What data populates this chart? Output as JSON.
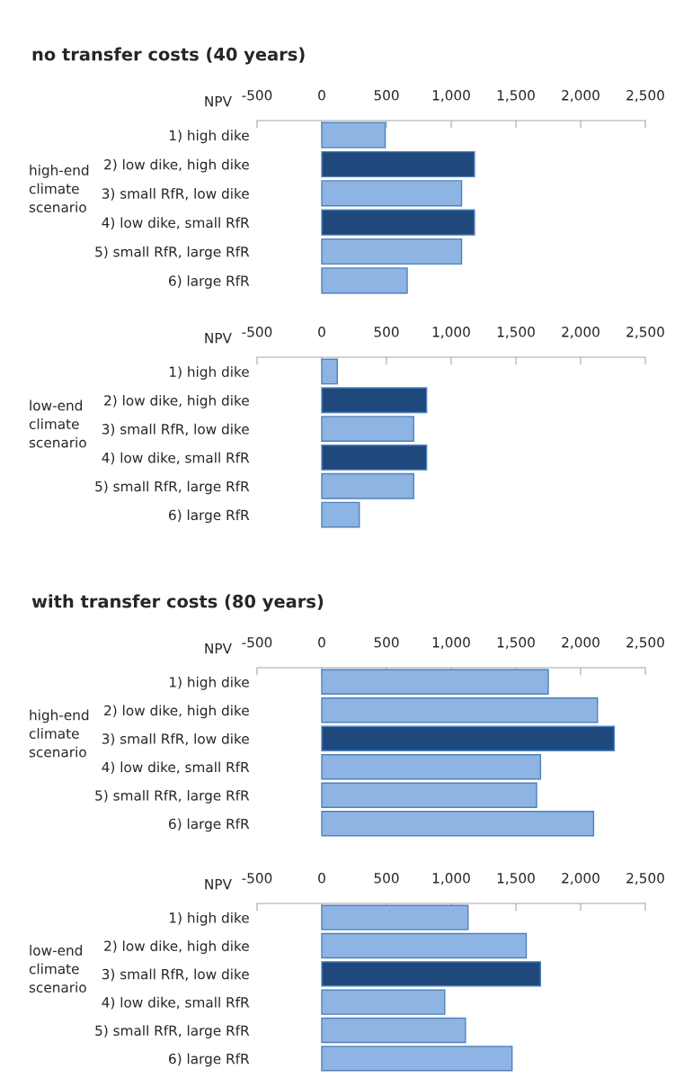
{
  "chart_data": [
    {
      "type": "bar",
      "orientation": "horizontal",
      "title": "no transfer costs (40 years)",
      "xlabel": "NPV",
      "ylabel": "high-end climate scenario",
      "categories": [
        "1) high dike",
        "2) low dike, high dike",
        "3) small RfR, low dike",
        "4) low dike, small RfR",
        "5) small RfR, large RfR",
        "6) large RfR"
      ],
      "values": [
        490,
        1180,
        1080,
        1180,
        1080,
        660
      ],
      "colors": [
        "#8eb4e3",
        "#1f497d",
        "#8eb4e3",
        "#1f497d",
        "#8eb4e3",
        "#8eb4e3"
      ],
      "xlim": [
        -500,
        2500
      ],
      "xticks": [
        {
          "value": -500,
          "label": "-500"
        },
        0,
        500,
        {
          "value": 1000,
          "label": "1,000"
        },
        {
          "value": 1500,
          "label": "1,500"
        },
        {
          "value": 2000,
          "label": "2,000"
        },
        {
          "value": 2500,
          "label": "2,500"
        }
      ],
      "grid": false,
      "legend": false
    },
    {
      "type": "bar",
      "orientation": "horizontal",
      "xlabel": "NPV",
      "ylabel": "low-end climate scenario",
      "categories": [
        "1) high dike",
        "2) low dike, high dike",
        "3) small RfR, low dike",
        "4) low dike, small RfR",
        "5) small RfR, large RfR",
        "6) large RfR"
      ],
      "values": [
        120,
        810,
        710,
        810,
        710,
        290
      ],
      "colors": [
        "#8eb4e3",
        "#1f497d",
        "#8eb4e3",
        "#1f497d",
        "#8eb4e3",
        "#8eb4e3"
      ],
      "xlim": [
        -500,
        2500
      ],
      "xticks": [
        {
          "value": -500,
          "label": "-500"
        },
        0,
        500,
        {
          "value": 1000,
          "label": "1,000"
        },
        {
          "value": 1500,
          "label": "1,500"
        },
        {
          "value": 2000,
          "label": "2,000"
        },
        {
          "value": 2500,
          "label": "2,500"
        }
      ],
      "grid": false,
      "legend": false
    },
    {
      "type": "bar",
      "orientation": "horizontal",
      "title": "with transfer costs (80 years)",
      "xlabel": "NPV",
      "ylabel": "high-end climate scenario",
      "categories": [
        "1) high dike",
        "2) low dike, high dike",
        "3) small RfR, low dike",
        "4) low dike, small RfR",
        "5) small RfR, large RfR",
        "6) large RfR"
      ],
      "values": [
        1750,
        2130,
        2260,
        1690,
        1660,
        2100
      ],
      "colors": [
        "#8eb4e3",
        "#8eb4e3",
        "#1f497d",
        "#8eb4e3",
        "#8eb4e3",
        "#8eb4e3"
      ],
      "xlim": [
        -500,
        2500
      ],
      "xticks": [
        {
          "value": -500,
          "label": "-500"
        },
        0,
        500,
        {
          "value": 1000,
          "label": "1,000"
        },
        {
          "value": 1500,
          "label": "1,500"
        },
        {
          "value": 2000,
          "label": "2,000"
        },
        {
          "value": 2500,
          "label": "2,500"
        }
      ],
      "grid": false,
      "legend": false
    },
    {
      "type": "bar",
      "orientation": "horizontal",
      "xlabel": "NPV",
      "ylabel": "low-end climate scenario",
      "categories": [
        "1) high dike",
        "2) low dike, high dike",
        "3) small RfR, low dike",
        "4) low dike, small RfR",
        "5) small RfR, large RfR",
        "6) large RfR"
      ],
      "values": [
        1130,
        1580,
        1690,
        950,
        1110,
        1470
      ],
      "colors": [
        "#8eb4e3",
        "#8eb4e3",
        "#1f497d",
        "#8eb4e3",
        "#8eb4e3",
        "#8eb4e3"
      ],
      "xlim": [
        -500,
        2500
      ],
      "xticks": [
        {
          "value": -500,
          "label": "-500"
        },
        0,
        500,
        {
          "value": 1000,
          "label": "1,000"
        },
        {
          "value": 1500,
          "label": "1,500"
        },
        {
          "value": 2000,
          "label": "2,000"
        },
        {
          "value": 2500,
          "label": "2,500"
        }
      ],
      "grid": false,
      "legend": false
    }
  ]
}
